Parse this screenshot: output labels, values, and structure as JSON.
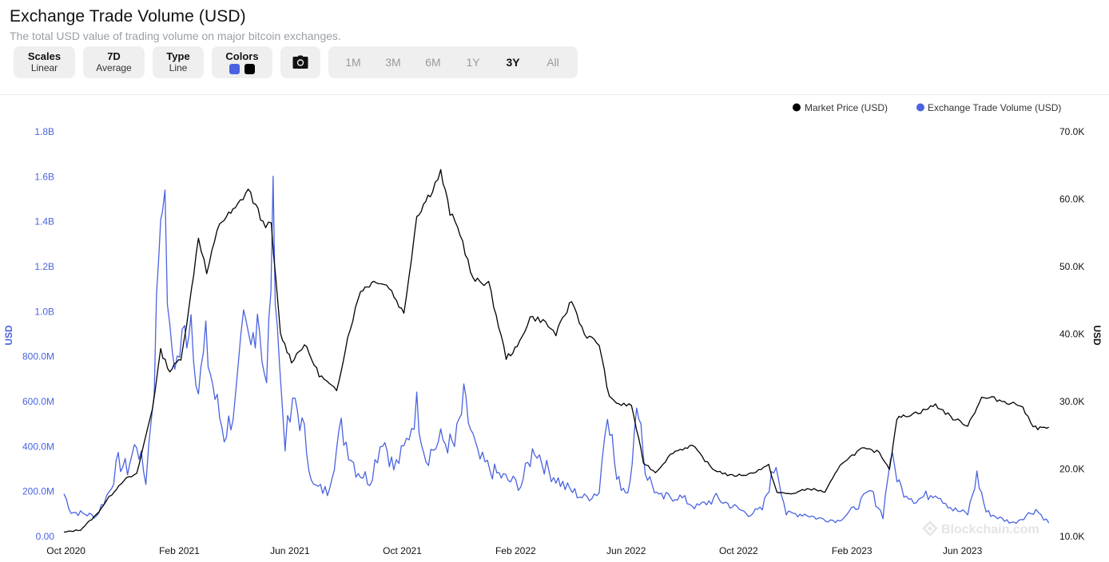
{
  "header": {
    "title": "Exchange Trade Volume (USD)",
    "subtitle": "The total USD value of trading volume on major bitcoin exchanges."
  },
  "toolbar": {
    "scales": {
      "label": "Scales",
      "value": "Linear"
    },
    "average": {
      "label": "7D",
      "value": "Average"
    },
    "type": {
      "label": "Type",
      "value": "Line"
    },
    "colors": {
      "label": "Colors",
      "swatch1": "#4a63e0",
      "swatch2": "#000000"
    },
    "camera_icon": "camera-icon",
    "ranges": [
      "1M",
      "3M",
      "6M",
      "1Y",
      "3Y",
      "All"
    ],
    "active_range": "3Y"
  },
  "watermark": "Blockchain.com",
  "chart_data": {
    "type": "line",
    "x_ticks": [
      "Oct 2020",
      "Feb 2021",
      "Jun 2021",
      "Oct 2021",
      "Feb 2022",
      "Jun 2022",
      "Oct 2022",
      "Feb 2023",
      "Jun 2023"
    ],
    "y_left": {
      "label": "USD",
      "ticks": [
        "0.00",
        "200.0M",
        "400.0M",
        "600.0M",
        "800.0M",
        "1.0B",
        "1.2B",
        "1.4B",
        "1.6B",
        "1.8B"
      ],
      "range": [
        0,
        1800000000
      ]
    },
    "y_right": {
      "label": "USD",
      "ticks": [
        "10.0K",
        "20.0K",
        "30.0K",
        "40.0K",
        "50.0K",
        "60.0K",
        "70.0K"
      ],
      "range": [
        10000,
        70000
      ]
    },
    "legend": [
      "Market Price (USD)",
      "Exchange Trade Volume (USD)"
    ],
    "legend_position": "top-right",
    "series": [
      {
        "name": "Market Price (USD)",
        "axis": "right",
        "color": "#000000",
        "x": [
          "2020-09-27",
          "2020-10-15",
          "2020-11-01",
          "2020-11-15",
          "2020-12-01",
          "2020-12-15",
          "2021-01-01",
          "2021-01-10",
          "2021-01-20",
          "2021-02-01",
          "2021-02-10",
          "2021-02-20",
          "2021-03-01",
          "2021-03-15",
          "2021-04-01",
          "2021-04-15",
          "2021-05-01",
          "2021-05-10",
          "2021-05-20",
          "2021-06-01",
          "2021-06-15",
          "2021-07-01",
          "2021-07-20",
          "2021-08-01",
          "2021-08-15",
          "2021-09-01",
          "2021-09-15",
          "2021-10-01",
          "2021-10-15",
          "2021-11-01",
          "2021-11-10",
          "2021-11-20",
          "2021-12-01",
          "2021-12-15",
          "2022-01-01",
          "2022-01-20",
          "2022-02-01",
          "2022-02-15",
          "2022-03-01",
          "2022-03-15",
          "2022-04-01",
          "2022-04-15",
          "2022-05-01",
          "2022-05-12",
          "2022-05-25",
          "2022-06-05",
          "2022-06-18",
          "2022-07-01",
          "2022-07-20",
          "2022-08-10",
          "2022-09-01",
          "2022-09-20",
          "2022-10-10",
          "2022-11-01",
          "2022-11-10",
          "2022-11-25",
          "2022-12-15",
          "2023-01-01",
          "2023-01-20",
          "2023-02-10",
          "2023-03-01",
          "2023-03-12",
          "2023-03-20",
          "2023-04-01",
          "2023-04-15",
          "2023-05-01",
          "2023-05-20",
          "2023-06-05",
          "2023-06-20",
          "2023-07-01",
          "2023-07-15",
          "2023-08-01",
          "2023-08-15",
          "2023-08-20",
          "2023-09-01"
        ],
        "values": [
          10600,
          11000,
          13200,
          15800,
          18400,
          19200,
          29000,
          37500,
          34500,
          36500,
          44000,
          54500,
          49000,
          56500,
          58500,
          61500,
          56500,
          56000,
          40000,
          36000,
          38500,
          34000,
          31500,
          39500,
          46500,
          48000,
          47000,
          43000,
          57500,
          61500,
          64000,
          58000,
          55000,
          48000,
          47500,
          36500,
          38000,
          42500,
          42000,
          40000,
          45000,
          40000,
          38500,
          30500,
          29500,
          29500,
          21000,
          19500,
          22500,
          23500,
          20000,
          19000,
          19200,
          20500,
          16500,
          16300,
          17100,
          16600,
          21000,
          23000,
          22500,
          20000,
          27500,
          28000,
          28500,
          29500,
          27500,
          26500,
          30500,
          30500,
          30000,
          29500,
          26500,
          26000,
          26200
        ]
      },
      {
        "name": "Exchange Trade Volume (USD)",
        "axis": "left",
        "color": "#4a63e0",
        "x": [
          "2020-09-27",
          "2020-10-05",
          "2020-10-20",
          "2020-11-01",
          "2020-11-15",
          "2020-11-25",
          "2020-12-05",
          "2020-12-15",
          "2020-12-25",
          "2021-01-03",
          "2021-01-08",
          "2021-01-12",
          "2021-01-20",
          "2021-01-28",
          "2021-02-05",
          "2021-02-12",
          "2021-02-20",
          "2021-02-28",
          "2021-03-10",
          "2021-03-20",
          "2021-04-01",
          "2021-04-10",
          "2021-04-18",
          "2021-04-25",
          "2021-05-05",
          "2021-05-12",
          "2021-05-19",
          "2021-05-25",
          "2021-06-05",
          "2021-06-15",
          "2021-06-25",
          "2021-07-10",
          "2021-07-25",
          "2021-08-10",
          "2021-08-25",
          "2021-09-08",
          "2021-09-20",
          "2021-10-01",
          "2021-10-15",
          "2021-10-25",
          "2021-11-10",
          "2021-11-25",
          "2021-12-05",
          "2021-12-20",
          "2022-01-05",
          "2022-01-22",
          "2022-02-05",
          "2022-02-20",
          "2022-03-05",
          "2022-03-25",
          "2022-04-15",
          "2022-05-01",
          "2022-05-10",
          "2022-05-20",
          "2022-06-01",
          "2022-06-13",
          "2022-06-20",
          "2022-07-05",
          "2022-07-25",
          "2022-08-15",
          "2022-09-05",
          "2022-09-20",
          "2022-10-10",
          "2022-10-25",
          "2022-11-09",
          "2022-11-20",
          "2022-12-10",
          "2022-12-25",
          "2023-01-15",
          "2023-02-01",
          "2023-02-20",
          "2023-03-05",
          "2023-03-13",
          "2023-03-25",
          "2023-04-10",
          "2023-05-01",
          "2023-05-20",
          "2023-06-05",
          "2023-06-15",
          "2023-06-25",
          "2023-07-10",
          "2023-07-25",
          "2023-08-10",
          "2023-08-18",
          "2023-09-01"
        ],
        "values": [
          190000000,
          110000000,
          100000000,
          90000000,
          200000000,
          330000000,
          300000000,
          420000000,
          250000000,
          700000000,
          1300000000,
          1640000000,
          850000000,
          780000000,
          900000000,
          1000000000,
          650000000,
          850000000,
          620000000,
          450000000,
          580000000,
          900000000,
          820000000,
          1040000000,
          650000000,
          1420000000,
          750000000,
          430000000,
          600000000,
          450000000,
          220000000,
          200000000,
          480000000,
          300000000,
          250000000,
          450000000,
          300000000,
          380000000,
          580000000,
          350000000,
          430000000,
          400000000,
          600000000,
          350000000,
          290000000,
          250000000,
          230000000,
          400000000,
          300000000,
          220000000,
          170000000,
          200000000,
          600000000,
          250000000,
          200000000,
          600000000,
          290000000,
          170000000,
          180000000,
          130000000,
          170000000,
          140000000,
          100000000,
          120000000,
          330000000,
          100000000,
          100000000,
          80000000,
          70000000,
          120000000,
          200000000,
          90000000,
          360000000,
          210000000,
          160000000,
          200000000,
          120000000,
          100000000,
          270000000,
          110000000,
          80000000,
          60000000,
          100000000,
          120000000,
          60000000
        ]
      }
    ]
  }
}
